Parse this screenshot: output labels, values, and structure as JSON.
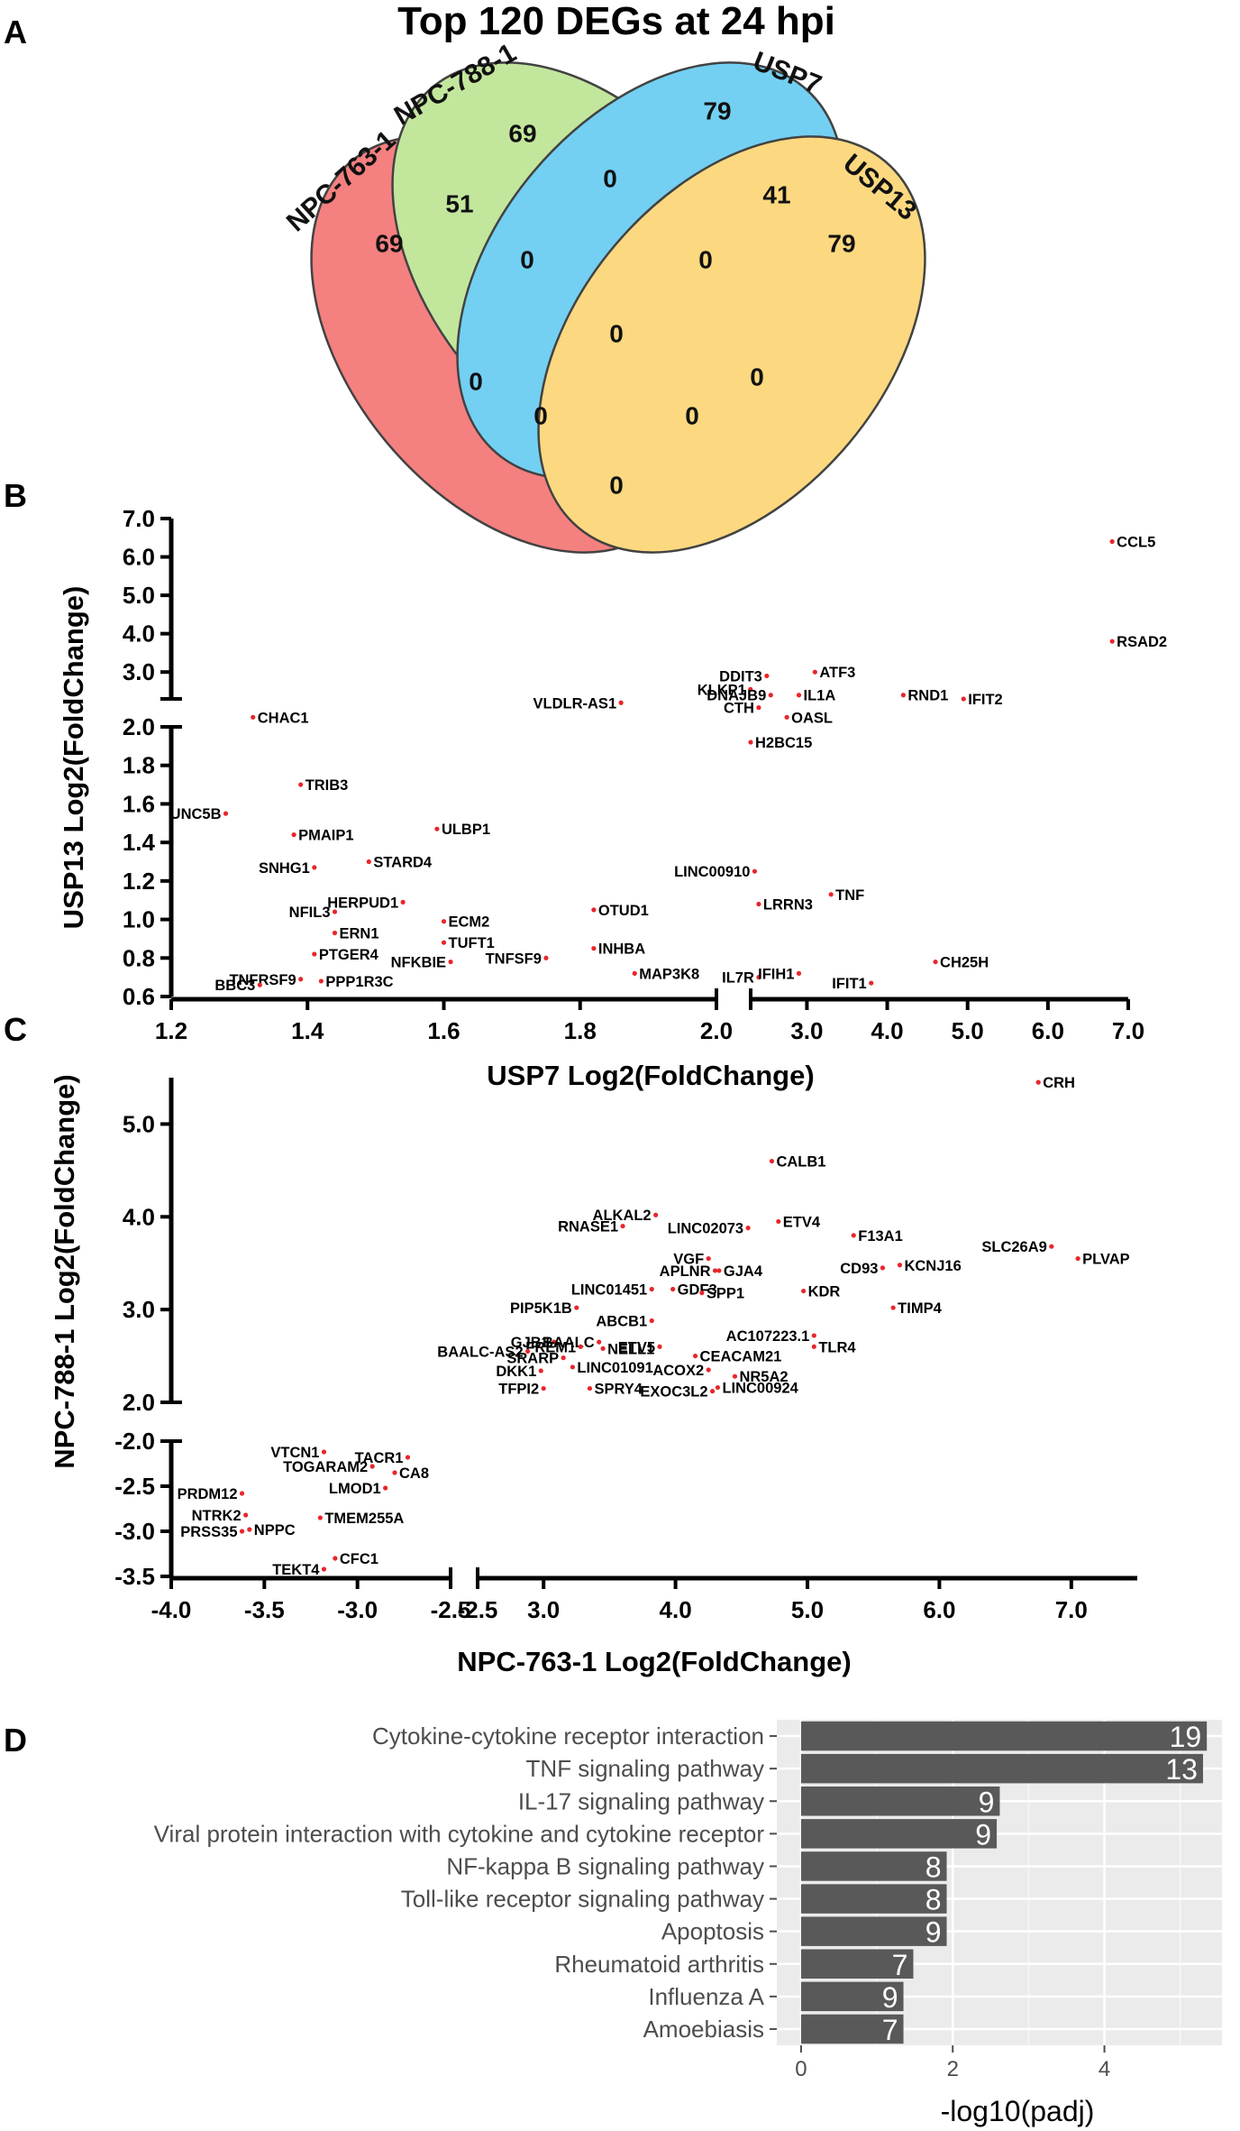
{
  "panel_letters": [
    "A",
    "B",
    "C",
    "D"
  ],
  "chart_data": [
    {
      "panel": "A",
      "type": "venn",
      "title": "Top 120 DEGs at 24 hpi",
      "sets": [
        {
          "name": "NPC-763-1",
          "color": "#f46a6a"
        },
        {
          "name": "NPC-788-1",
          "color": "#b9e28c"
        },
        {
          "name": "USP7",
          "color": "#5bc8f0"
        },
        {
          "name": "USP13",
          "color": "#fcd36a"
        }
      ],
      "regions": [
        {
          "sets": [
            "NPC-763-1"
          ],
          "count": 69
        },
        {
          "sets": [
            "NPC-788-1"
          ],
          "count": 69
        },
        {
          "sets": [
            "USP7"
          ],
          "count": 79
        },
        {
          "sets": [
            "USP13"
          ],
          "count": 79
        },
        {
          "sets": [
            "NPC-763-1",
            "NPC-788-1"
          ],
          "count": 51
        },
        {
          "sets": [
            "NPC-788-1",
            "USP7"
          ],
          "count": 0
        },
        {
          "sets": [
            "USP7",
            "USP13"
          ],
          "count": 41
        },
        {
          "sets": [
            "NPC-763-1",
            "NPC-788-1",
            "USP7"
          ],
          "count": 0
        },
        {
          "sets": [
            "NPC-788-1",
            "USP7",
            "USP13"
          ],
          "count": 0
        },
        {
          "sets": [
            "NPC-763-1",
            "NPC-788-1",
            "USP7",
            "USP13"
          ],
          "count": 0
        },
        {
          "sets": [
            "NPC-763-1",
            "USP7"
          ],
          "count": 0
        },
        {
          "sets": [
            "NPC-788-1",
            "USP13"
          ],
          "count": 0
        },
        {
          "sets": [
            "NPC-763-1",
            "USP7",
            "USP13"
          ],
          "count": 0
        },
        {
          "sets": [
            "NPC-763-1",
            "NPC-788-1",
            "USP13"
          ],
          "count": 0
        },
        {
          "sets": [
            "NPC-763-1",
            "USP13"
          ],
          "count": 0
        }
      ]
    },
    {
      "panel": "B",
      "type": "scatter",
      "xlabel": "USP7 Log2(FoldChange)",
      "ylabel": "USP13 Log2(FoldChange)",
      "x_axis_segments": [
        {
          "range": [
            1.2,
            2.0
          ],
          "ticks": [
            "1.2",
            "1.4",
            "1.6",
            "1.8",
            "2.0"
          ]
        },
        {
          "range": [
            2.3,
            7.0
          ],
          "ticks": [
            "3.0",
            "4.0",
            "5.0",
            "6.0",
            "7.0"
          ]
        }
      ],
      "y_axis_segments": [
        {
          "range": [
            0.6,
            2.0
          ],
          "ticks": [
            "0.6",
            "0.8",
            "1.0",
            "1.2",
            "1.4",
            "1.6",
            "1.8",
            "2.0"
          ]
        },
        {
          "range": [
            2.3,
            7.0
          ],
          "ticks": [
            "3.0",
            "4.0",
            "5.0",
            "6.0",
            "7.0"
          ]
        }
      ],
      "point_color": "#e8262a",
      "points": [
        {
          "label": "CCL5",
          "x": 6.8,
          "y": 6.4
        },
        {
          "label": "RSAD2",
          "x": 6.8,
          "y": 3.8
        },
        {
          "label": "DDIT3",
          "x": 2.5,
          "y": 2.9
        },
        {
          "label": "ATF3",
          "x": 3.1,
          "y": 3.0
        },
        {
          "label": "KLKP1",
          "x": 2.05,
          "y": 2.55
        },
        {
          "label": "DNAJB9",
          "x": 2.55,
          "y": 2.4
        },
        {
          "label": "IL1A",
          "x": 2.9,
          "y": 2.4
        },
        {
          "label": "RND1",
          "x": 4.2,
          "y": 2.4
        },
        {
          "label": "IFIT2",
          "x": 4.95,
          "y": 2.3
        },
        {
          "label": "CHAC1",
          "x": 1.32,
          "y": 2.05
        },
        {
          "label": "VLDLR-AS1",
          "x": 1.86,
          "y": 2.2
        },
        {
          "label": "CTH",
          "x": 2.4,
          "y": 2.1
        },
        {
          "label": "OASL",
          "x": 2.75,
          "y": 2.05
        },
        {
          "label": "H2BC15",
          "x": 2.3,
          "y": 1.92
        },
        {
          "label": "TRIB3",
          "x": 1.39,
          "y": 1.7
        },
        {
          "label": "UNC5B",
          "x": 1.28,
          "y": 1.55
        },
        {
          "label": "PMAIP1",
          "x": 1.38,
          "y": 1.44
        },
        {
          "label": "ULBP1",
          "x": 1.59,
          "y": 1.47
        },
        {
          "label": "SNHG1",
          "x": 1.41,
          "y": 1.27
        },
        {
          "label": "STARD4",
          "x": 1.49,
          "y": 1.3
        },
        {
          "label": "LINC00910",
          "x": 2.35,
          "y": 1.25
        },
        {
          "label": "TNF",
          "x": 3.3,
          "y": 1.13
        },
        {
          "label": "HERPUD1",
          "x": 1.54,
          "y": 1.09
        },
        {
          "label": "LRRN3",
          "x": 2.4,
          "y": 1.08
        },
        {
          "label": "NFIL3",
          "x": 1.44,
          "y": 1.04
        },
        {
          "label": "OTUD1",
          "x": 1.82,
          "y": 1.05
        },
        {
          "label": "ECM2",
          "x": 1.6,
          "y": 0.99
        },
        {
          "label": "ERN1",
          "x": 1.44,
          "y": 0.93
        },
        {
          "label": "INHBA",
          "x": 1.82,
          "y": 0.85
        },
        {
          "label": "TUFT1",
          "x": 1.6,
          "y": 0.88
        },
        {
          "label": "PTGER4",
          "x": 1.41,
          "y": 0.82
        },
        {
          "label": "NFKBIE",
          "x": 1.61,
          "y": 0.78
        },
        {
          "label": "TNFSF9",
          "x": 1.75,
          "y": 0.8
        },
        {
          "label": "CH25H",
          "x": 4.6,
          "y": 0.78
        },
        {
          "label": "IL7R",
          "x": 2.4,
          "y": 0.7
        },
        {
          "label": "IFIH1",
          "x": 2.9,
          "y": 0.72
        },
        {
          "label": "MAP3K8",
          "x": 1.88,
          "y": 0.72
        },
        {
          "label": "TNFRSF9",
          "x": 1.39,
          "y": 0.69
        },
        {
          "label": "PPP1R3C",
          "x": 1.42,
          "y": 0.68
        },
        {
          "label": "IFIT1",
          "x": 3.8,
          "y": 0.67
        },
        {
          "label": "BBC3",
          "x": 1.33,
          "y": 0.66
        }
      ]
    },
    {
      "panel": "C",
      "type": "scatter",
      "xlabel": "NPC-763-1 Log2(FoldChange)",
      "ylabel": "NPC-788-1 Log2(FoldChange)",
      "x_axis_segments": [
        {
          "range": [
            -4.0,
            -2.5
          ],
          "ticks": [
            "-4.0",
            "-3.5",
            "-3.0",
            "-2.5"
          ]
        },
        {
          "range": [
            2.5,
            7.5
          ],
          "ticks": [
            "-2.5",
            "3.0",
            "4.0",
            "5.0",
            "6.0",
            "7.0"
          ]
        }
      ],
      "y_axis_segments": [
        {
          "range": [
            -3.5,
            -2.0
          ],
          "ticks": [
            "-3.5",
            "-3.0",
            "-2.5",
            "-2.0"
          ]
        },
        {
          "range": [
            2.0,
            5.5
          ],
          "ticks": [
            "2.0",
            "3.0",
            "4.0",
            "5.0"
          ]
        }
      ],
      "point_color": "#e8262a",
      "points": [
        {
          "label": "CRH",
          "x": 6.75,
          "y": 5.45
        },
        {
          "label": "CALB1",
          "x": 4.73,
          "y": 4.6
        },
        {
          "label": "ALKAL2",
          "x": 3.85,
          "y": 4.02
        },
        {
          "label": "RNASE1",
          "x": 3.6,
          "y": 3.9
        },
        {
          "label": "ETV4",
          "x": 4.78,
          "y": 3.95
        },
        {
          "label": "LINC02073",
          "x": 4.55,
          "y": 3.88
        },
        {
          "label": "F13A1",
          "x": 5.35,
          "y": 3.8
        },
        {
          "label": "SLC26A9",
          "x": 6.85,
          "y": 3.68
        },
        {
          "label": "VGF",
          "x": 4.25,
          "y": 3.55
        },
        {
          "label": "PLVAP",
          "x": 7.05,
          "y": 3.55
        },
        {
          "label": "KCNJ16",
          "x": 5.7,
          "y": 3.48
        },
        {
          "label": "CD93",
          "x": 5.57,
          "y": 3.45
        },
        {
          "label": "APLNR",
          "x": 4.3,
          "y": 3.42
        },
        {
          "label": "GJA4",
          "x": 4.33,
          "y": 3.42
        },
        {
          "label": "LINC01451",
          "x": 3.82,
          "y": 3.22
        },
        {
          "label": "GDF3",
          "x": 3.98,
          "y": 3.22
        },
        {
          "label": "SPP1",
          "x": 4.2,
          "y": 3.18
        },
        {
          "label": "KDR",
          "x": 4.97,
          "y": 3.2
        },
        {
          "label": "TIMP4",
          "x": 5.65,
          "y": 3.02
        },
        {
          "label": "PIP5K1B",
          "x": 3.25,
          "y": 3.02
        },
        {
          "label": "ABCB1",
          "x": 3.82,
          "y": 2.88
        },
        {
          "label": "AC107223.1",
          "x": 5.05,
          "y": 2.72
        },
        {
          "label": "GJB3",
          "x": 3.08,
          "y": 2.65
        },
        {
          "label": "BAALC",
          "x": 3.42,
          "y": 2.65
        },
        {
          "label": "TLR4",
          "x": 5.05,
          "y": 2.6
        },
        {
          "label": "FREM1",
          "x": 3.28,
          "y": 2.6
        },
        {
          "label": "ETV5",
          "x": 3.88,
          "y": 2.6
        },
        {
          "label": "NELL1",
          "x": 3.45,
          "y": 2.58
        },
        {
          "label": "BAALC-AS2",
          "x": 2.88,
          "y": 2.55
        },
        {
          "label": "SRARP",
          "x": 3.15,
          "y": 2.48
        },
        {
          "label": "CEACAM21",
          "x": 4.15,
          "y": 2.5
        },
        {
          "label": "LINC01091",
          "x": 3.22,
          "y": 2.38
        },
        {
          "label": "DKK1",
          "x": 2.98,
          "y": 2.34
        },
        {
          "label": "ACOX2",
          "x": 4.25,
          "y": 2.35
        },
        {
          "label": "NR5A2",
          "x": 4.45,
          "y": 2.28
        },
        {
          "label": "TFPI2",
          "x": 3.0,
          "y": 2.15
        },
        {
          "label": "SPRY4",
          "x": 3.35,
          "y": 2.15
        },
        {
          "label": "EXOC3L2",
          "x": 4.28,
          "y": 2.12
        },
        {
          "label": "LINC00924",
          "x": 4.32,
          "y": 2.16
        },
        {
          "label": "VTCN1",
          "x": -3.18,
          "y": -2.12
        },
        {
          "label": "TACR1",
          "x": -2.73,
          "y": -2.18
        },
        {
          "label": "TOGARAM2",
          "x": -2.92,
          "y": -2.28
        },
        {
          "label": "CA8",
          "x": -2.8,
          "y": -2.35
        },
        {
          "label": "LMOD1",
          "x": -2.85,
          "y": -2.52
        },
        {
          "label": "PRDM12",
          "x": -3.62,
          "y": -2.58
        },
        {
          "label": "TMEM255A",
          "x": -3.2,
          "y": -2.85
        },
        {
          "label": "NTRK2",
          "x": -3.6,
          "y": -2.82
        },
        {
          "label": "NPPC",
          "x": -3.58,
          "y": -2.98
        },
        {
          "label": "PRSS35",
          "x": -3.62,
          "y": -3.0
        },
        {
          "label": "CFC1",
          "x": -3.12,
          "y": -3.3
        },
        {
          "label": "TEKT4",
          "x": -3.18,
          "y": -3.42
        }
      ]
    },
    {
      "panel": "D",
      "type": "bar",
      "orientation": "horizontal",
      "xlabel": "-log10(padj)",
      "xlim": [
        -0.32,
        5.55
      ],
      "xticks": [
        0,
        2,
        4
      ],
      "bar_color": "#595959",
      "panel_background": "#ebebeb",
      "categories": [
        "Cytokine-cytokine receptor interaction",
        "TNF signaling pathway",
        "IL-17 signaling pathway",
        "Viral protein interaction with cytokine and cytokine receptor",
        "NF-kappa B signaling pathway",
        "Toll-like receptor signaling pathway",
        "Apoptosis",
        "Rheumatoid arthritis",
        "Influenza A",
        "Amoebiasis"
      ],
      "values": [
        5.35,
        5.3,
        2.62,
        2.58,
        1.92,
        1.92,
        1.92,
        1.48,
        1.35,
        1.35
      ],
      "counts": [
        "19",
        "13",
        "9",
        "9",
        "8",
        "8",
        "9",
        "7",
        "9",
        "7"
      ]
    }
  ]
}
